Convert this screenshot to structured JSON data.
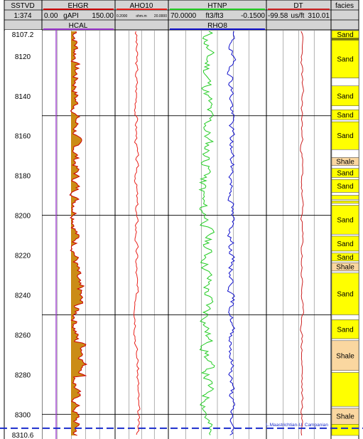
{
  "chart_data": {
    "type": "well_log",
    "depth_track": {
      "mnemonic": "SSTVD",
      "scale": "1:374",
      "top_depth": "8107.2",
      "bottom_depth": "8310.6"
    },
    "depth_range": [
      8107.2,
      8310.6
    ],
    "depth_ticks": [
      "8120",
      "8140",
      "8160",
      "8180",
      "8200",
      "8220",
      "8240",
      "8260",
      "8280",
      "8300"
    ],
    "major_grid_depths": [
      8150,
      8200,
      8250,
      8300
    ],
    "tracks": [
      {
        "curves": [
          {
            "mnemonic": "EHGR",
            "left": "0.00",
            "unit": "gAPI",
            "right": "150.00",
            "color": "#cc0000",
            "fill": "#c8860a"
          },
          {
            "mnemonic": "HCAL",
            "color": "#9933cc"
          }
        ]
      },
      {
        "curves": [
          {
            "mnemonic": "AHO10",
            "left": "0.2000",
            "unit": "ohm.m",
            "right": "20.0000",
            "color": "#e8201a"
          }
        ]
      },
      {
        "curves": [
          {
            "mnemonic": "HTNP",
            "left": "70.0000",
            "unit": "ft3/ft3",
            "right": "-0.1500",
            "color": "#22cc22"
          },
          {
            "mnemonic": "RHO8",
            "color": "#1010cc"
          }
        ]
      },
      {
        "curves": [
          {
            "mnemonic": "DT",
            "left": "-99.58",
            "unit": "us/ft",
            "right": "310.01",
            "color": "#cc2222"
          }
        ]
      }
    ],
    "facies": {
      "title": "facies",
      "intervals": [
        {
          "top": 8107.2,
          "base": 8111.0,
          "label": "Sand",
          "color": "#ffff00"
        },
        {
          "top": 8111.0,
          "base": 8112.0,
          "label": "",
          "color": "#7a7a00"
        },
        {
          "top": 8112.0,
          "base": 8131.0,
          "label": "Sand",
          "color": "#ffff00"
        },
        {
          "top": 8131.0,
          "base": 8135.0,
          "label": "",
          "color": "#ffffff"
        },
        {
          "top": 8135.0,
          "base": 8145.0,
          "label": "Sand",
          "color": "#ffff00"
        },
        {
          "top": 8145.0,
          "base": 8147.0,
          "label": "",
          "color": "#ffffff"
        },
        {
          "top": 8147.0,
          "base": 8152.0,
          "label": "Sand",
          "color": "#ffff00"
        },
        {
          "top": 8152.0,
          "base": 8153.0,
          "label": "",
          "color": "#ffffff"
        },
        {
          "top": 8153.0,
          "base": 8167.0,
          "label": "Sand",
          "color": "#ffff00"
        },
        {
          "top": 8167.0,
          "base": 8171.0,
          "label": "",
          "color": "#ffffff"
        },
        {
          "top": 8171.0,
          "base": 8175.0,
          "label": "Shale",
          "color": "#fad7a0"
        },
        {
          "top": 8175.0,
          "base": 8176.5,
          "label": "",
          "color": "#ffffff"
        },
        {
          "top": 8176.5,
          "base": 8181.0,
          "label": "Sand",
          "color": "#ffff00"
        },
        {
          "top": 8181.0,
          "base": 8182.0,
          "label": "",
          "color": "#ffffff"
        },
        {
          "top": 8182.0,
          "base": 8188.5,
          "label": "Sand",
          "color": "#ffff00"
        },
        {
          "top": 8188.5,
          "base": 8190.0,
          "label": "",
          "color": "#ffffff"
        },
        {
          "top": 8190.0,
          "base": 8192.0,
          "label": "",
          "color": "#ffff00"
        },
        {
          "top": 8192.0,
          "base": 8192.8,
          "label": "",
          "color": "#ffffff"
        },
        {
          "top": 8192.8,
          "base": 8194.0,
          "label": "",
          "color": "#ffff00"
        },
        {
          "top": 8194.0,
          "base": 8195.0,
          "label": "",
          "color": "#ffffff"
        },
        {
          "top": 8195.0,
          "base": 8209.5,
          "label": "Sand",
          "color": "#ffff00"
        },
        {
          "top": 8209.5,
          "base": 8210.5,
          "label": "",
          "color": "#ffffff"
        },
        {
          "top": 8210.5,
          "base": 8218.0,
          "label": "Sand",
          "color": "#ffff00"
        },
        {
          "top": 8218.0,
          "base": 8219.0,
          "label": "",
          "color": "#ffffff"
        },
        {
          "top": 8219.0,
          "base": 8223.0,
          "label": "Sand",
          "color": "#ffff00"
        },
        {
          "top": 8223.0,
          "base": 8223.8,
          "label": "",
          "color": "#ffffff"
        },
        {
          "top": 8223.8,
          "base": 8228.0,
          "label": "Shale",
          "color": "#fad7a0"
        },
        {
          "top": 8228.0,
          "base": 8229.0,
          "label": "",
          "color": "#ffffff"
        },
        {
          "top": 8229.0,
          "base": 8250.0,
          "label": "Sand",
          "color": "#ffff00"
        },
        {
          "top": 8250.0,
          "base": 8252.5,
          "label": "",
          "color": "#ffffff"
        },
        {
          "top": 8252.5,
          "base": 8262.0,
          "label": "Sand",
          "color": "#ffff00"
        },
        {
          "top": 8262.0,
          "base": 8263.0,
          "label": "",
          "color": "#ffffff"
        },
        {
          "top": 8263.0,
          "base": 8278.0,
          "label": "Shale",
          "color": "#fad7a0"
        },
        {
          "top": 8278.0,
          "base": 8279.0,
          "label": "",
          "color": "#ffffff"
        },
        {
          "top": 8279.0,
          "base": 8296.0,
          "label": "",
          "color": "#ffff00"
        },
        {
          "top": 8296.0,
          "base": 8297.0,
          "label": "",
          "color": "#ffffff"
        },
        {
          "top": 8297.0,
          "base": 8305.0,
          "label": "Shale",
          "color": "#fad7a0"
        },
        {
          "top": 8305.0,
          "base": 8310.6,
          "label": "",
          "color": "#ffff00"
        }
      ]
    },
    "marker": {
      "depth": 8307.0,
      "label": "L.Maastrichtian-U. Campanian",
      "color": "#1a2ccc"
    },
    "grid": true
  }
}
